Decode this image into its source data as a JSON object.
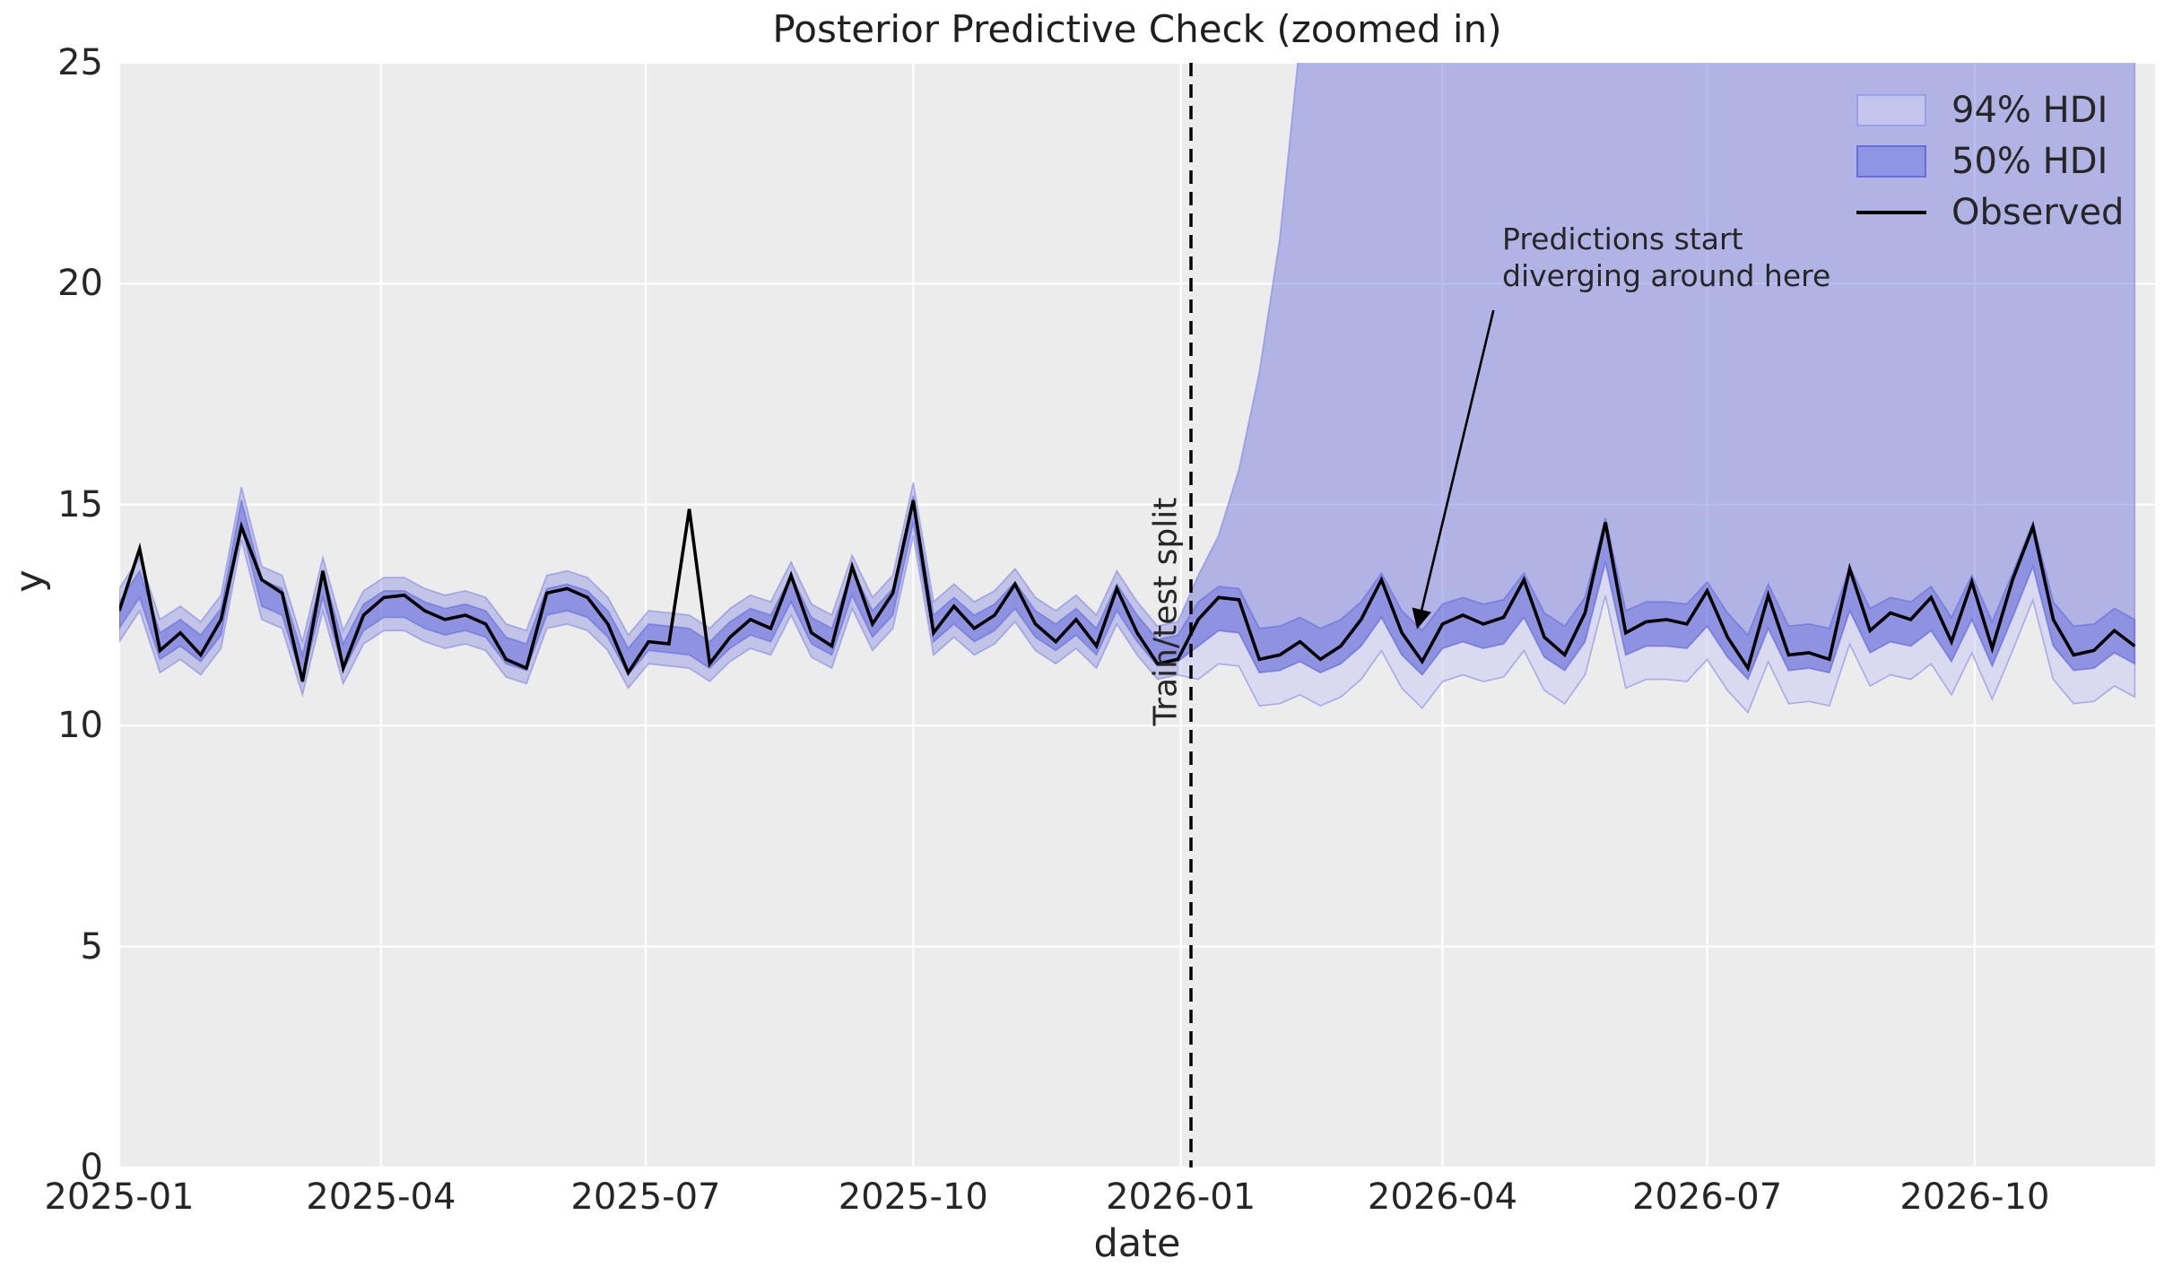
{
  "title": "Posterior Predictive Check (zoomed in)",
  "axes": {
    "xlabel": "date",
    "ylabel": "y",
    "ylim": [
      0,
      25
    ],
    "xlim_days": [
      0,
      700
    ],
    "yticks": [
      0,
      5,
      10,
      15,
      20,
      25
    ],
    "xticks": [
      {
        "label": "2025-01",
        "day": 0
      },
      {
        "label": "2025-04",
        "day": 90
      },
      {
        "label": "2025-07",
        "day": 181
      },
      {
        "label": "2025-10",
        "day": 273
      },
      {
        "label": "2026-01",
        "day": 365
      },
      {
        "label": "2026-04",
        "day": 455
      },
      {
        "label": "2026-07",
        "day": 546
      },
      {
        "label": "2026-10",
        "day": 638
      }
    ],
    "grid": true
  },
  "legend": [
    {
      "label": "94% HDI",
      "type": "band",
      "color": "#c3c5ed"
    },
    {
      "label": "50% HDI",
      "type": "band",
      "color": "#8f94e3"
    },
    {
      "label": "Observed",
      "type": "line",
      "color": "#000000"
    }
  ],
  "annotations": {
    "divergence_text": "Predictions start\ndiverging around here",
    "split_label": "Train/test split",
    "split_day": 368.5,
    "arrow": {
      "from_day": 472.5,
      "from_y": 19.4,
      "to_day": 446.5,
      "to_y": 12.25
    }
  },
  "colors": {
    "plot_background": "#ececec",
    "grid": "#ffffff",
    "hdi_base": "#6b71dd",
    "hdi94_fill_opacity": 0.32,
    "upper_wedge_opacity": 0.2,
    "lower_wedge_white_opacity": 0.38,
    "hdi50_fill": "#5057d7",
    "hdi50_fill_opacity": 0.45,
    "band_edge": "#5a61d9",
    "observed": "#000000",
    "split_line": "#000000",
    "text": "#262626"
  },
  "chart_data": {
    "type": "line",
    "title": "Posterior Predictive Check (zoomed in)",
    "xlabel": "date",
    "ylabel": "y",
    "ylim": [
      0,
      25
    ],
    "legend_position": "upper right",
    "x": {
      "start_date": "2025-01-01",
      "step_days": 7,
      "count": 100
    },
    "split_index": 53,
    "split_date": "2026-01-04",
    "observed": [
      12.6,
      14.0,
      11.7,
      12.1,
      11.6,
      12.4,
      14.5,
      13.3,
      13.0,
      11.0,
      13.5,
      11.3,
      12.5,
      12.9,
      12.95,
      12.6,
      12.4,
      12.5,
      12.3,
      11.5,
      11.3,
      13.0,
      13.1,
      12.9,
      12.3,
      11.2,
      11.9,
      11.85,
      14.9,
      11.4,
      12.0,
      12.4,
      12.2,
      13.4,
      12.1,
      11.8,
      13.6,
      12.3,
      13.0,
      15.1,
      12.1,
      12.7,
      12.2,
      12.5,
      13.2,
      12.3,
      11.9,
      12.4,
      11.8,
      13.1,
      12.1,
      11.4,
      11.5,
      12.4,
      12.9,
      12.85,
      11.5,
      11.6,
      11.9,
      11.5,
      11.8,
      12.4,
      13.3,
      12.1,
      11.45,
      12.3,
      12.5,
      12.3,
      12.45,
      13.3,
      12.0,
      11.6,
      12.55,
      14.6,
      12.1,
      12.35,
      12.4,
      12.3,
      13.05,
      12.0,
      11.3,
      12.95,
      11.6,
      11.65,
      11.5,
      13.55,
      12.15,
      12.55,
      12.4,
      12.9,
      11.9,
      13.25,
      11.75,
      13.3,
      14.5,
      12.4,
      11.6,
      11.7,
      12.15,
      11.8
    ],
    "hdi94_upper": [
      13.1,
      13.8,
      12.4,
      12.7,
      12.35,
      12.95,
      15.4,
      13.6,
      13.4,
      11.9,
      13.8,
      12.15,
      13.05,
      13.35,
      13.35,
      13.1,
      12.95,
      13.05,
      12.9,
      12.3,
      12.15,
      13.4,
      13.5,
      13.35,
      12.9,
      12.05,
      12.6,
      12.55,
      12.5,
      12.2,
      12.65,
      12.95,
      12.8,
      13.7,
      12.75,
      12.5,
      13.85,
      12.9,
      13.4,
      15.5,
      12.8,
      13.2,
      12.8,
      13.05,
      13.55,
      12.9,
      12.6,
      12.95,
      12.5,
      13.5,
      12.8,
      12.25,
      12.35,
      13.4,
      14.3,
      15.8,
      18.0,
      21.0,
      25.5,
      31,
      38,
      47,
      58,
      72,
      90,
      112,
      140,
      175,
      219,
      274,
      342,
      428,
      535,
      669,
      836,
      1045,
      1306,
      1633,
      2041,
      2551,
      3189,
      3986,
      4983,
      6229,
      7786,
      9733,
      12166,
      15208,
      19010,
      23762,
      29703,
      37129,
      46411,
      58014,
      72517,
      90647,
      113308,
      141635,
      177044,
      221305
    ],
    "hdi94_lower": [
      11.9,
      12.6,
      11.2,
      11.5,
      11.15,
      11.75,
      14.2,
      12.4,
      12.2,
      10.7,
      12.6,
      10.95,
      11.85,
      12.15,
      12.15,
      11.9,
      11.75,
      11.85,
      11.7,
      11.1,
      10.95,
      12.2,
      12.3,
      12.15,
      11.7,
      10.85,
      11.4,
      11.35,
      11.3,
      11.0,
      11.45,
      11.75,
      11.6,
      12.5,
      11.55,
      11.3,
      12.65,
      11.7,
      12.2,
      14.3,
      11.6,
      12.0,
      11.6,
      11.85,
      12.35,
      11.7,
      11.4,
      11.75,
      11.3,
      12.3,
      11.6,
      11.05,
      11.15,
      11.05,
      11.4,
      11.35,
      10.45,
      10.5,
      10.7,
      10.45,
      10.65,
      11.05,
      11.7,
      10.85,
      10.4,
      11.0,
      11.15,
      11.0,
      11.1,
      11.7,
      10.8,
      10.5,
      11.15,
      12.95,
      10.85,
      11.05,
      11.05,
      11.0,
      11.5,
      10.8,
      10.3,
      11.45,
      10.5,
      10.55,
      10.45,
      11.85,
      10.9,
      11.15,
      11.05,
      11.4,
      10.7,
      11.65,
      10.6,
      11.7,
      12.85,
      11.05,
      10.5,
      10.55,
      10.9,
      10.65
    ],
    "hdi50_upper": [
      12.8,
      13.5,
      12.1,
      12.4,
      12.05,
      12.65,
      15.1,
      13.3,
      13.1,
      11.6,
      13.5,
      11.85,
      12.75,
      13.05,
      13.05,
      12.8,
      12.65,
      12.75,
      12.6,
      12.0,
      11.85,
      13.1,
      13.2,
      13.05,
      12.6,
      11.75,
      12.3,
      12.25,
      12.2,
      11.9,
      12.35,
      12.65,
      12.5,
      13.4,
      12.45,
      12.2,
      13.55,
      12.6,
      13.1,
      15.2,
      12.5,
      12.9,
      12.5,
      12.75,
      13.25,
      12.6,
      12.3,
      12.65,
      12.2,
      13.2,
      12.5,
      11.95,
      12.05,
      12.8,
      13.15,
      13.1,
      12.2,
      12.25,
      12.45,
      12.2,
      12.4,
      12.8,
      13.45,
      12.6,
      12.15,
      12.75,
      12.9,
      12.75,
      12.85,
      13.45,
      12.55,
      12.25,
      12.9,
      14.7,
      12.6,
      12.8,
      12.8,
      12.75,
      13.25,
      12.55,
      12.05,
      13.2,
      12.25,
      12.3,
      12.2,
      13.6,
      12.65,
      12.9,
      12.8,
      13.15,
      12.45,
      13.4,
      12.35,
      13.45,
      14.6,
      12.8,
      12.25,
      12.3,
      12.65,
      12.4
    ],
    "hdi50_lower": [
      12.2,
      12.9,
      11.5,
      11.8,
      11.45,
      12.05,
      14.5,
      12.7,
      12.5,
      11.0,
      12.9,
      11.25,
      12.15,
      12.45,
      12.45,
      12.2,
      12.05,
      12.15,
      12.0,
      11.4,
      11.25,
      12.5,
      12.6,
      12.45,
      12.0,
      11.15,
      11.7,
      11.65,
      11.6,
      11.3,
      11.75,
      12.05,
      11.9,
      12.8,
      11.85,
      11.6,
      12.95,
      12.0,
      12.5,
      14.6,
      11.9,
      12.3,
      11.9,
      12.15,
      12.65,
      12.0,
      11.7,
      12.05,
      11.6,
      12.6,
      11.9,
      11.35,
      11.45,
      11.8,
      12.15,
      12.1,
      11.2,
      11.25,
      11.45,
      11.2,
      11.4,
      11.8,
      12.45,
      11.6,
      11.15,
      11.75,
      11.9,
      11.75,
      11.85,
      12.45,
      11.55,
      11.25,
      11.9,
      13.7,
      11.6,
      11.8,
      11.8,
      11.75,
      12.25,
      11.55,
      11.05,
      12.2,
      11.25,
      11.3,
      11.2,
      12.6,
      11.65,
      11.9,
      11.8,
      12.15,
      11.45,
      12.4,
      11.35,
      12.45,
      13.6,
      11.8,
      11.25,
      11.3,
      11.65,
      11.4
    ]
  }
}
